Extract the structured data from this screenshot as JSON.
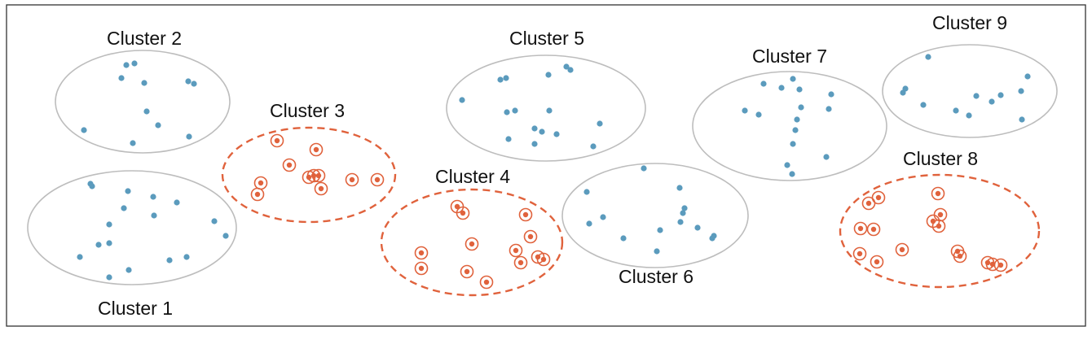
{
  "colors": {
    "point": "#5b9bbd",
    "selected": "#e0623c",
    "ellipse": "#bdbdbd",
    "frame": "#333333",
    "label": "#111111"
  },
  "clusters": [
    {
      "id": 1,
      "label": "Cluster 1",
      "selected": false,
      "points": 14
    },
    {
      "id": 2,
      "label": "Cluster 2",
      "selected": false,
      "points": 11
    },
    {
      "id": 3,
      "label": "Cluster 3",
      "selected": true,
      "points": 11
    },
    {
      "id": 4,
      "label": "Cluster 4",
      "selected": true,
      "points": 13
    },
    {
      "id": 5,
      "label": "Cluster 5",
      "selected": false,
      "points": 15
    },
    {
      "id": 6,
      "label": "Cluster 6",
      "selected": false,
      "points": 15
    },
    {
      "id": 7,
      "label": "Cluster 7",
      "selected": false,
      "points": 15
    },
    {
      "id": 8,
      "label": "Cluster 8",
      "selected": true,
      "points": 16
    },
    {
      "id": 9,
      "label": "Cluster 9",
      "selected": false,
      "points": 12
    }
  ]
}
